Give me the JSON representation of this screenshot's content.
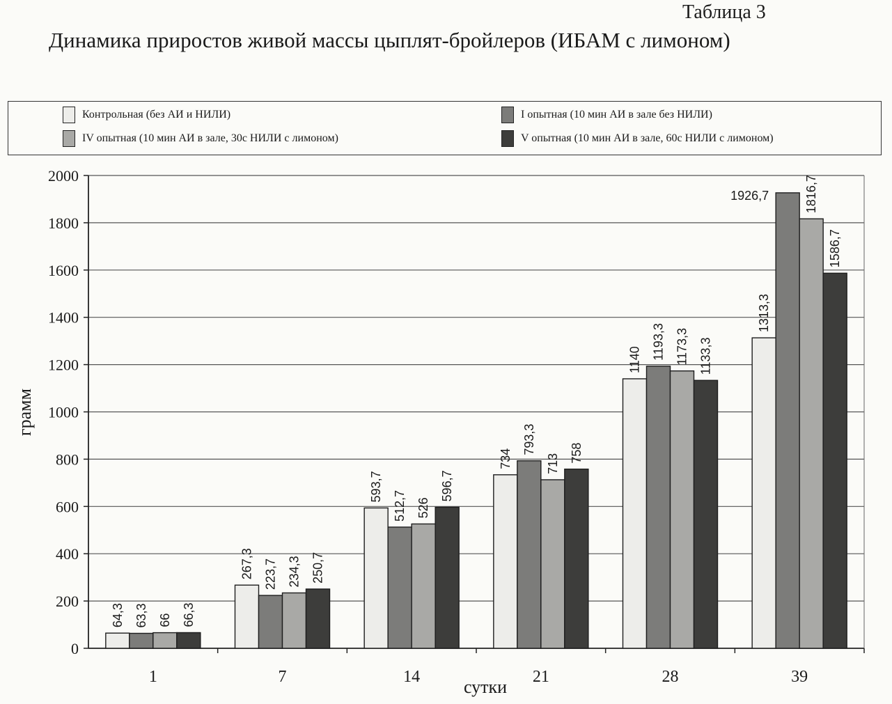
{
  "header": {
    "table_label": "Таблица 3",
    "title": "Динамика приростов живой массы цыплят-бройлеров (ИБАМ с лимоном)"
  },
  "legend": [
    {
      "label": "Контрольная (без АИ и НИЛИ)",
      "color": "#ededea"
    },
    {
      "label": "I опытная (10 мин АИ в зале без НИЛИ)",
      "color": "#7c7c7a"
    },
    {
      "label": "IV опытная (10 мин АИ в зале, 30с НИЛИ с лимоном)",
      "color": "#a9a9a6"
    },
    {
      "label": "V опытная (10 мин АИ в зале, 60с НИЛИ с лимоном)",
      "color": "#3d3d3b"
    }
  ],
  "chart_data": {
    "type": "bar",
    "title": "Динамика приростов живой массы цыплят-бройлеров (ИБАМ с лимоном)",
    "xlabel": "сутки",
    "ylabel": "грамм",
    "ylim": [
      0,
      2000
    ],
    "yticks": [
      0,
      200,
      400,
      600,
      800,
      1000,
      1200,
      1400,
      1600,
      1800,
      2000
    ],
    "grid": true,
    "legend_position": "top",
    "categories": [
      "1",
      "7",
      "14",
      "21",
      "28",
      "39"
    ],
    "series": [
      {
        "name": "Контрольная (без АИ и НИЛИ)",
        "values": [
          64.3,
          267.3,
          593.7,
          734,
          1140,
          1313.3
        ],
        "labels": [
          "64,3",
          "267,3",
          "593,7",
          "734",
          "1140",
          "1313,3"
        ]
      },
      {
        "name": "I опытная (10 мин АИ в зале без НИЛИ)",
        "values": [
          63.3,
          223.7,
          512.7,
          793.3,
          1193.3,
          1926.7
        ],
        "labels": [
          "63,3",
          "223,7",
          "512,7",
          "793,3",
          "1193,3",
          "1926,7"
        ]
      },
      {
        "name": "IV опытная (10 мин АИ в зале, 30с НИЛИ с лимоном)",
        "values": [
          66,
          234.3,
          526,
          713,
          1173.3,
          1816.7
        ],
        "labels": [
          "66",
          "234,3",
          "526",
          "713",
          "1173,3",
          "1816,7"
        ]
      },
      {
        "name": "V опытная (10 мин АИ в зале, 60с НИЛИ с лимоном)",
        "values": [
          66.3,
          250.7,
          596.7,
          758,
          1133.3,
          1586.7
        ],
        "labels": [
          "66,3",
          "250,7",
          "596,7",
          "758",
          "1133,3",
          "1586,7"
        ]
      }
    ]
  }
}
